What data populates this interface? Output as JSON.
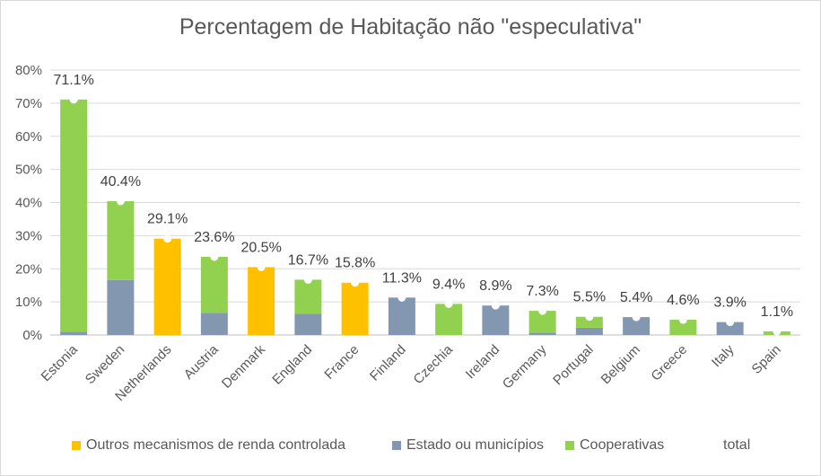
{
  "chart_data": {
    "type": "bar",
    "stacked": true,
    "title": "Percentagem de Habitação não \"especulativa\"",
    "categories": [
      "Estonia",
      "Sweden",
      "Netherlands",
      "Austria",
      "Denmark",
      "England",
      "France",
      "Finland",
      "Czechia",
      "Ireland",
      "Germany",
      "Portugal",
      "Belgium",
      "Greece",
      "Italy",
      "Spain"
    ],
    "series": [
      {
        "name": "Outros mecanismos de renda controlada",
        "color": "#FFC000",
        "values": [
          0,
          0,
          29.1,
          0,
          20.5,
          0,
          15.8,
          0,
          0,
          0,
          0,
          0,
          0,
          0,
          0,
          0
        ]
      },
      {
        "name": "Estado ou municípios",
        "color": "#8497B0",
        "values": [
          1.0,
          16.6,
          0,
          6.7,
          0,
          6.4,
          0,
          11.3,
          0,
          8.9,
          0.7,
          2.2,
          5.4,
          0,
          3.9,
          0
        ]
      },
      {
        "name": "Cooperativas",
        "color": "#92D050",
        "values": [
          70.1,
          23.8,
          0,
          16.9,
          0,
          10.3,
          0,
          0,
          9.4,
          0,
          6.6,
          3.3,
          0,
          4.6,
          0,
          1.1
        ]
      },
      {
        "name": "total",
        "color": "#FFFFFF",
        "marker": true,
        "values": [
          71.1,
          40.4,
          29.1,
          23.6,
          20.5,
          16.7,
          15.8,
          11.3,
          9.4,
          8.9,
          7.3,
          5.5,
          5.4,
          4.6,
          3.9,
          1.1
        ]
      }
    ],
    "data_labels": [
      "71.1%",
      "40.4%",
      "29.1%",
      "23.6%",
      "20.5%",
      "16.7%",
      "15.8%",
      "11.3%",
      "9.4%",
      "8.9%",
      "7.3%",
      "5.5%",
      "5.4%",
      "4.6%",
      "3.9%",
      "1.1%"
    ],
    "ylim": [
      0,
      80
    ],
    "yticks": [
      0,
      10,
      20,
      30,
      40,
      50,
      60,
      70,
      80
    ],
    "ytick_labels": [
      "0%",
      "10%",
      "20%",
      "30%",
      "40%",
      "50%",
      "60%",
      "70%",
      "80%"
    ],
    "grid": true,
    "legend_position": "bottom",
    "xlabel": "",
    "ylabel": ""
  }
}
